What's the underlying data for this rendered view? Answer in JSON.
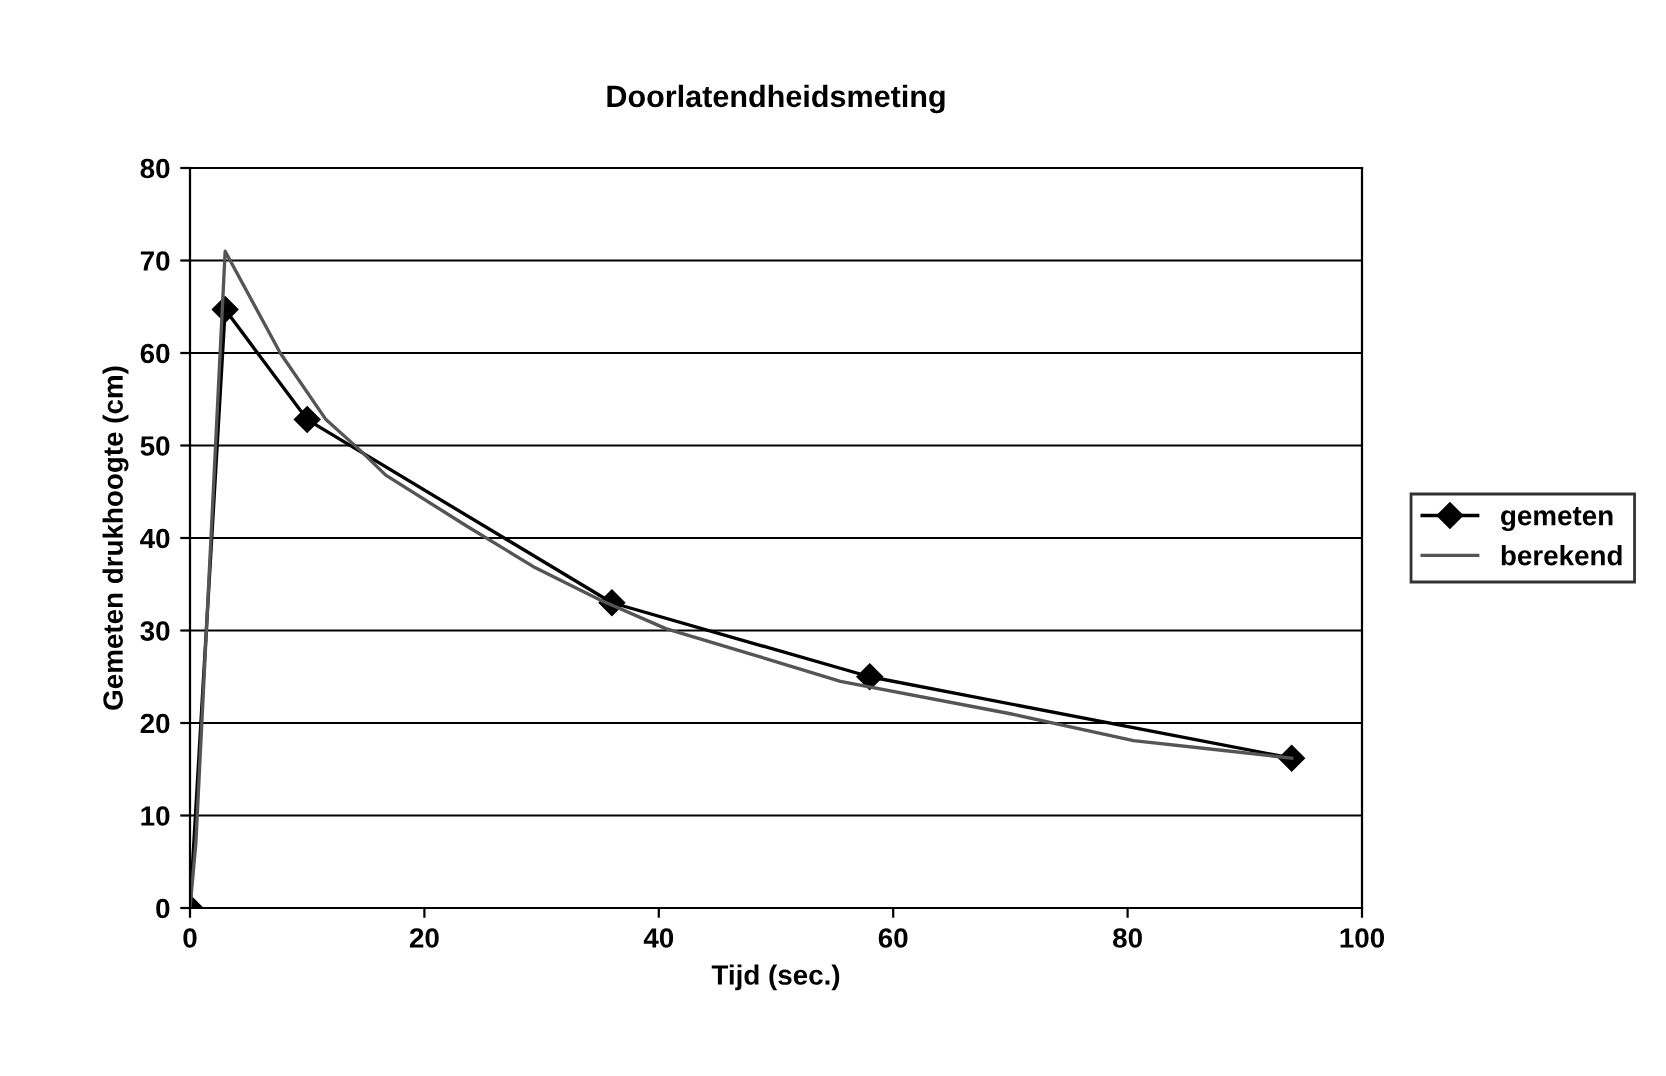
{
  "chart_data": {
    "type": "line",
    "title": "Doorlatendheidsmeting",
    "xlabel": "Tijd (sec.)",
    "ylabel": "Gemeten drukhoogte (cm)",
    "xlim": [
      0,
      100
    ],
    "xticks": [
      0,
      20,
      40,
      60,
      80,
      100
    ],
    "ylim": [
      0,
      80
    ],
    "yticks": [
      0,
      10,
      20,
      30,
      40,
      50,
      60,
      70,
      80
    ],
    "grid": "y",
    "legend": "right",
    "series": [
      {
        "name": "gemeten",
        "color": "#000000",
        "marker": "diamond",
        "x": [
          0,
          3,
          10,
          36,
          58,
          94
        ],
        "values": [
          0,
          64.7,
          52.8,
          33,
          25,
          16.2
        ]
      },
      {
        "name": "berekend",
        "color": "#555555",
        "marker": "none",
        "x": [
          0,
          0.5,
          3,
          7.7,
          11.6,
          14.5,
          16.7,
          23.6,
          29.3,
          35,
          40.6,
          48,
          55.5,
          70,
          80.5,
          88.4,
          94
        ],
        "values": [
          0,
          7,
          71,
          60,
          52.8,
          49.5,
          46.8,
          41.3,
          36.9,
          33.3,
          30.2,
          27.4,
          24.5,
          21,
          18.1,
          17,
          16.2
        ]
      }
    ]
  }
}
